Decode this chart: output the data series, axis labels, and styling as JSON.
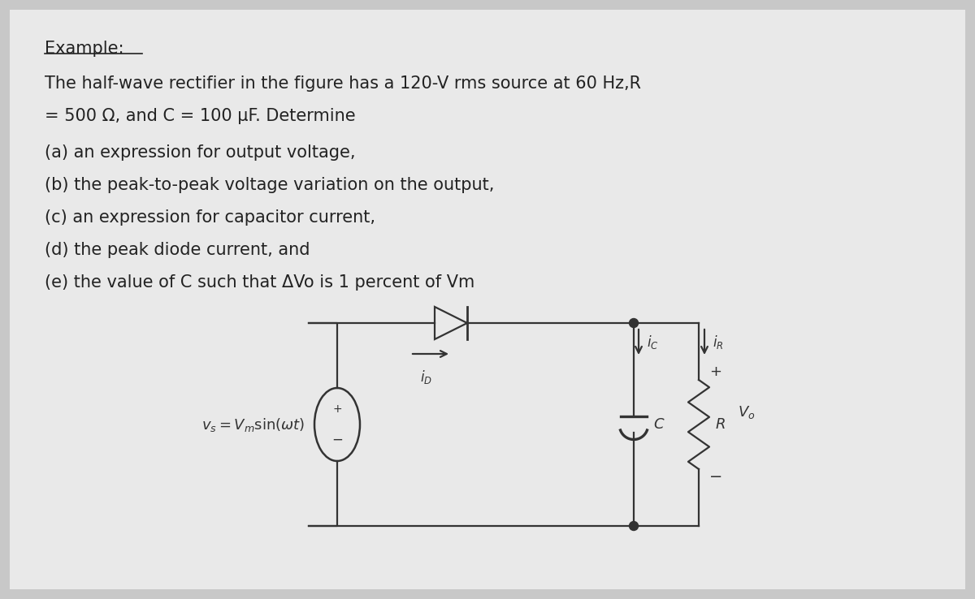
{
  "bg_color": "#c8c8c8",
  "panel_color": "#e8e8e8",
  "text_color": "#222222",
  "line_color": "#333333",
  "title": "Example:",
  "desc1": "The half-wave rectifier in the figure has a 120-V rms source at 60 Hz,R",
  "desc2": "= 500 Ω, and C = 100 μF. Determine",
  "items": [
    "(a) an expression for output voltage,",
    "(b) the peak-to-peak voltage variation on the output,",
    "(c) an expression for capacitor current,",
    "(d) the peak diode current, and",
    "(e) the value of C such that ΔVo is 1 percent of Vm"
  ],
  "font_size_text": 15,
  "font_size_title": 15,
  "lw": 1.6
}
